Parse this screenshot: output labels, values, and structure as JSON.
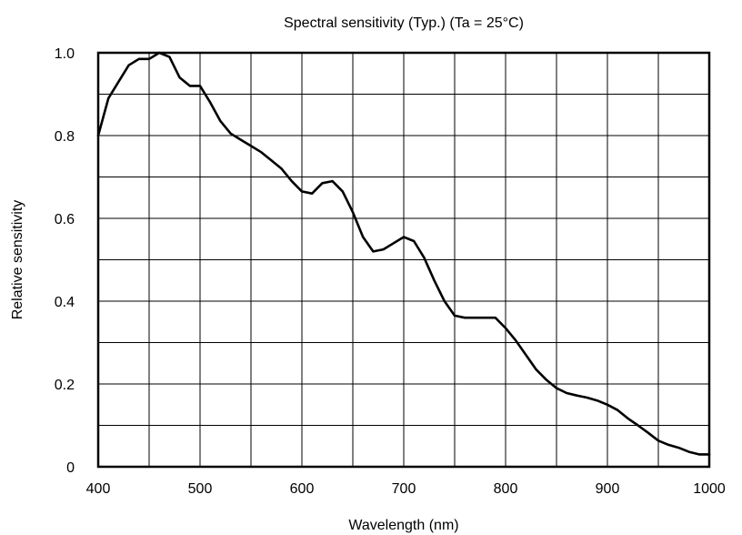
{
  "chart_data": {
    "type": "line",
    "title": "Spectral sensitivity (Typ.) (Ta = 25°C)",
    "xlabel": "Wavelength (nm)",
    "ylabel": "Relative sensitivity",
    "xlim": [
      400,
      1000
    ],
    "ylim": [
      0,
      1.0
    ],
    "x_ticks": [
      400,
      500,
      600,
      700,
      800,
      900,
      1000
    ],
    "y_ticks": [
      0,
      0.2,
      0.4,
      0.6,
      0.8,
      1.0
    ],
    "x_tick_labels": [
      "400",
      "500",
      "600",
      "700",
      "800",
      "900",
      "1000"
    ],
    "y_tick_labels": [
      "0",
      "0.2",
      "0.4",
      "0.6",
      "0.8",
      "1.0"
    ],
    "grid": true,
    "series": [
      {
        "color": "#000000",
        "x": [
          400,
          410,
          420,
          430,
          440,
          450,
          460,
          470,
          480,
          490,
          500,
          510,
          520,
          530,
          540,
          550,
          560,
          570,
          580,
          590,
          600,
          610,
          620,
          630,
          640,
          650,
          660,
          670,
          680,
          690,
          700,
          710,
          720,
          730,
          740,
          750,
          760,
          770,
          780,
          790,
          800,
          810,
          820,
          830,
          840,
          850,
          860,
          870,
          880,
          890,
          900,
          910,
          920,
          930,
          940,
          950,
          960,
          970,
          980,
          990,
          1000
        ],
        "y": [
          0.8,
          0.89,
          0.93,
          0.97,
          0.985,
          0.985,
          1.0,
          0.99,
          0.94,
          0.92,
          0.92,
          0.88,
          0.835,
          0.805,
          0.79,
          0.775,
          0.76,
          0.74,
          0.72,
          0.69,
          0.665,
          0.66,
          0.685,
          0.69,
          0.665,
          0.615,
          0.555,
          0.52,
          0.525,
          0.54,
          0.555,
          0.545,
          0.505,
          0.45,
          0.4,
          0.365,
          0.36,
          0.36,
          0.36,
          0.36,
          0.335,
          0.305,
          0.27,
          0.235,
          0.21,
          0.19,
          0.178,
          0.172,
          0.167,
          0.16,
          0.15,
          0.137,
          0.117,
          0.1,
          0.082,
          0.063,
          0.053,
          0.046,
          0.036,
          0.03,
          0.03
        ]
      }
    ]
  }
}
